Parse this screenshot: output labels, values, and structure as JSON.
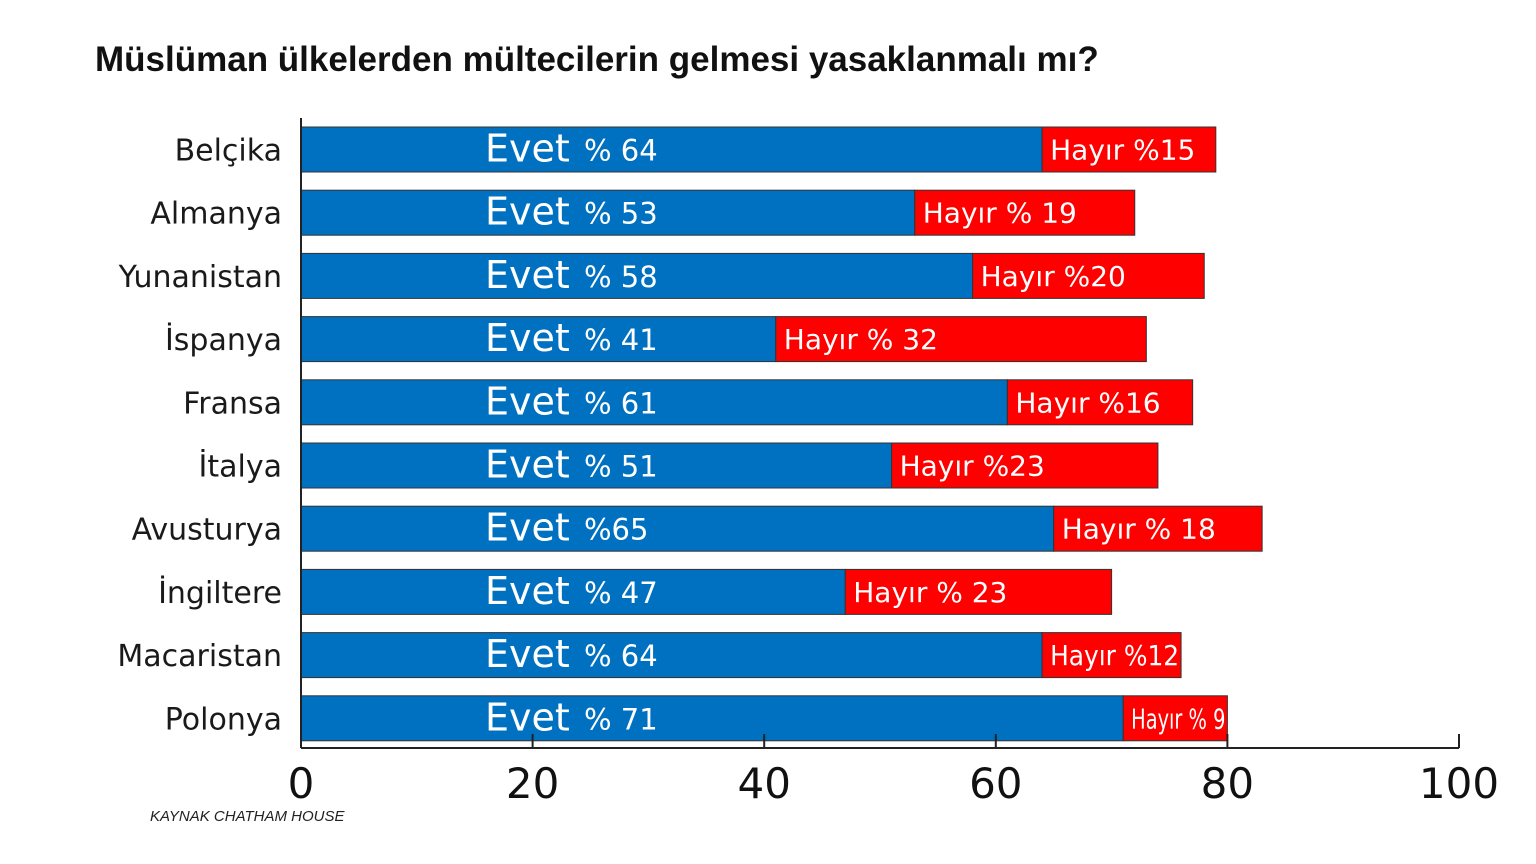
{
  "chart_data": {
    "type": "bar",
    "orientation": "horizontal",
    "stacked": true,
    "title": "Müslüman ülkelerden mültecilerin gelmesi yasaklanmalı mı?",
    "source": "KAYNAK CHATHAM HOUSE",
    "categories": [
      "Belçika",
      "Almanya",
      "Yunanistan",
      "İspanya",
      "Fransa",
      "İtalya",
      "Avusturya",
      "İngiltere",
      "Macaristan",
      "Polonya"
    ],
    "series": [
      {
        "name": "Evet",
        "color": "#0070c0",
        "values": [
          64,
          53,
          58,
          41,
          61,
          51,
          65,
          47,
          64,
          71
        ],
        "value_labels": [
          "% 64",
          "% 53",
          "% 58",
          "% 41",
          "% 61",
          "% 51",
          "%65",
          "% 47",
          "% 64",
          "% 71"
        ]
      },
      {
        "name": "Hayır",
        "color": "#ff0000",
        "values": [
          15,
          19,
          20,
          32,
          16,
          23,
          18,
          23,
          12,
          9
        ],
        "value_labels": [
          "%15",
          "% 19",
          "%20",
          "% 32",
          "%16",
          "%23",
          "% 18",
          "% 23",
          "%12",
          "% 9"
        ]
      }
    ],
    "xlim": [
      0,
      100
    ],
    "xticks": [
      0,
      20,
      40,
      60,
      80,
      100
    ],
    "xlabel": "",
    "ylabel": "",
    "grid": false,
    "legend": "none"
  }
}
